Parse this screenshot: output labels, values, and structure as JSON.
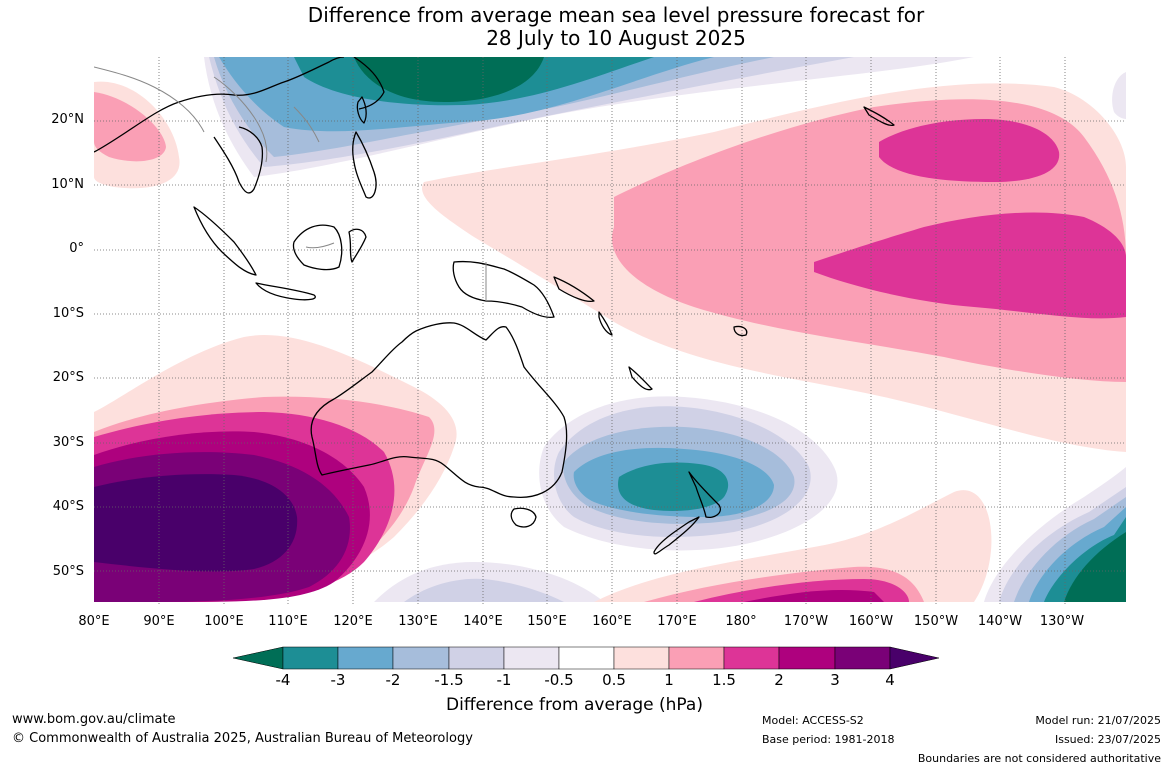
{
  "title_line1": "Difference from average mean sea level pressure forecast for",
  "title_line2": "28 July to 10 August 2025",
  "lat_labels": [
    "20°N",
    "10°N",
    "0°",
    "10°S",
    "20°S",
    "30°S",
    "40°S",
    "50°S"
  ],
  "lon_labels": [
    "80°E",
    "90°E",
    "100°E",
    "110°E",
    "120°E",
    "130°E",
    "140°E",
    "150°E",
    "160°E",
    "170°E",
    "180°",
    "170°W",
    "160°W",
    "150°W",
    "140°W",
    "130°W"
  ],
  "colorbar": {
    "title": "Difference from average (hPa)",
    "labels": [
      "-4",
      "-3",
      "-2",
      "-1.5",
      "-1",
      "-0.5",
      "0.5",
      "1",
      "1.5",
      "2",
      "3",
      "4"
    ],
    "colors": {
      "lt_-4": "#006e56",
      "-4_-3": "#1d8e95",
      "-3_-2": "#67a9cf",
      "-2_-1.5": "#a6bddb",
      "-1.5_-1": "#d0d1e6",
      "-1_-0.5": "#ece7f2",
      "-0.5_0.5": "#ffffff",
      "0.5_1": "#fde0dd",
      "1_1.5": "#fa9fb5",
      "1.5_2": "#dd3497",
      "2_3": "#ae017e",
      "3_4": "#7a0177",
      "gt_4": "#49006a"
    }
  },
  "footer": {
    "website": "www.bom.gov.au/climate",
    "copyright": "© Commonwealth of Australia 2025, Australian Bureau of Meteorology",
    "model": "Model: ACCESS-S2",
    "base_period": "Base period: 1981-2018",
    "model_run": "Model run: 21/07/2025",
    "issued": "Issued: 23/07/2025",
    "disclaimer": "Boundaries are not considered authoritative"
  }
}
